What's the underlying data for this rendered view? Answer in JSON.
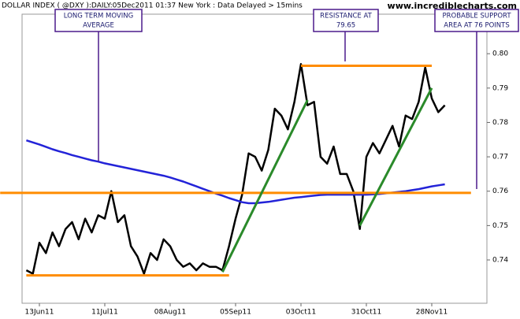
{
  "header": {
    "title": "DOLLAR INDEX ( @DXY ):DAILY:05Dec2011 01:37 New York  : Data Delayed > 15mins",
    "site": "www.incrediblecharts.com"
  },
  "chart_data": {
    "type": "line",
    "categories": [
      null,
      null,
      "13Jun11",
      null,
      null,
      null,
      null,
      null,
      null,
      null,
      null,
      null,
      "11Jul11",
      null,
      null,
      null,
      null,
      null,
      null,
      null,
      null,
      null,
      "08Aug11",
      null,
      null,
      null,
      null,
      null,
      null,
      null,
      null,
      null,
      "05Sep11",
      null,
      null,
      null,
      null,
      null,
      null,
      null,
      null,
      null,
      "03Oct11",
      null,
      null,
      null,
      null,
      null,
      null,
      null,
      null,
      null,
      "31Oct11",
      null,
      null,
      null,
      null,
      null,
      null,
      null,
      null,
      null,
      "28Nov11",
      null,
      null
    ],
    "series": [
      {
        "color": "#000000",
        "values": [
          0.737,
          0.736,
          0.745,
          0.742,
          0.748,
          0.744,
          0.749,
          0.751,
          0.746,
          0.752,
          0.748,
          0.753,
          0.752,
          0.76,
          0.751,
          0.753,
          0.744,
          0.741,
          0.736,
          0.742,
          0.74,
          0.746,
          0.744,
          0.74,
          0.738,
          0.739,
          0.737,
          0.739,
          0.738,
          0.738,
          0.737,
          0.744,
          0.752,
          0.759,
          0.771,
          0.77,
          0.766,
          0.772,
          0.784,
          0.782,
          0.778,
          0.786,
          0.797,
          0.785,
          0.786,
          0.77,
          0.768,
          0.773,
          0.765,
          0.765,
          0.76,
          0.749,
          0.77,
          0.774,
          0.771,
          0.775,
          0.779,
          0.773,
          0.782,
          0.781,
          0.786,
          0.796,
          0.787,
          0.783,
          0.785
        ]
      },
      {
        "color": "#2323d8",
        "values": [
          0.7748,
          0.7742,
          0.7736,
          0.7729,
          0.7722,
          0.7716,
          0.7711,
          0.7705,
          0.77,
          0.7695,
          0.769,
          0.7686,
          0.7681,
          0.7677,
          0.7673,
          0.7669,
          0.7665,
          0.7661,
          0.7657,
          0.7653,
          0.7649,
          0.7645,
          0.764,
          0.7634,
          0.7628,
          0.7621,
          0.7614,
          0.7607,
          0.76,
          0.7593,
          0.7587,
          0.758,
          0.7574,
          0.7568,
          0.7565,
          0.7565,
          0.7567,
          0.7569,
          0.7572,
          0.7575,
          0.7578,
          0.7581,
          0.7583,
          0.7585,
          0.7587,
          0.7589,
          0.759,
          0.759,
          0.759,
          0.759,
          0.759,
          0.759,
          0.759,
          0.7591,
          0.7592,
          0.7594,
          0.7596,
          0.7598,
          0.76,
          0.7603,
          0.7606,
          0.761,
          0.7614,
          0.7617,
          0.762
        ]
      }
    ],
    "lines": [
      {
        "color": "#ff8c00",
        "x": [
          -4,
          68
        ],
        "values": [
          0.7595,
          0.7595
        ]
      },
      {
        "color": "#ff8c00",
        "x": [
          42,
          62
        ],
        "values": [
          0.7965,
          0.7965
        ]
      },
      {
        "color": "#ff8c00",
        "x": [
          0,
          31
        ],
        "values": [
          0.7355,
          0.7355
        ]
      },
      {
        "color": "#2a8a2a",
        "x": [
          30,
          43
        ],
        "values": [
          0.7365,
          0.7865
        ]
      },
      {
        "color": "#2a8a2a",
        "x": [
          51,
          62
        ],
        "values": [
          0.75,
          0.79
        ]
      }
    ],
    "ylim": [
      0.7274,
      0.8115
    ],
    "yticks": [
      0.74,
      0.75,
      0.76,
      0.77,
      0.78,
      0.79,
      {
        "value": 0.8,
        "label": "0.80"
      }
    ],
    "annotations": [
      {
        "lines": [
          "LONG TERM MOVING",
          "AVERAGE"
        ]
      },
      {
        "lines": [
          "RESISTANCE AT",
          "79.65"
        ]
      },
      {
        "lines": [
          "PROBABLE SUPPORT",
          "AREA AT 76 POINTS"
        ]
      }
    ]
  }
}
